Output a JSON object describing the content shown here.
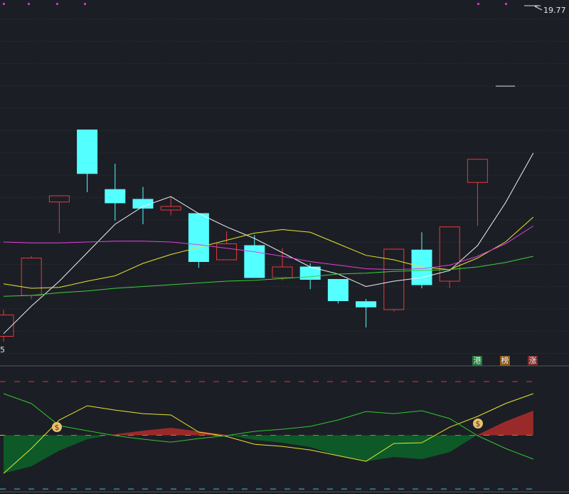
{
  "chart_data": [
    {
      "type": "candlestick",
      "ylim": [
        15.83,
        19.83
      ],
      "categories": [
        null,
        null,
        null,
        null,
        null,
        null,
        null,
        null,
        null,
        null,
        null,
        null,
        null,
        null,
        null,
        null,
        null,
        null,
        null,
        null
      ],
      "open": [
        16.05,
        16.51,
        17.56,
        18.37,
        17.7,
        17.59,
        17.47,
        17.43,
        16.91,
        17.07,
        16.71,
        16.83,
        16.69,
        16.44,
        16.35,
        17.02,
        16.67,
        17.78,
        null,
        null
      ],
      "high": [
        16.35,
        16.95,
        17.63,
        18.37,
        17.99,
        17.73,
        17.61,
        17.43,
        17.23,
        17.19,
        17.04,
        16.87,
        16.69,
        16.47,
        17.03,
        17.22,
        17.28,
        18.04,
        null,
        null
      ],
      "low": [
        15.99,
        16.47,
        17.21,
        17.67,
        17.35,
        17.31,
        17.41,
        16.82,
        16.91,
        16.71,
        16.68,
        16.58,
        16.42,
        16.15,
        16.33,
        16.59,
        16.59,
        17.29,
        null,
        null
      ],
      "close": [
        16.29,
        16.93,
        17.63,
        17.88,
        17.55,
        17.49,
        17.51,
        16.89,
        17.09,
        16.71,
        16.83,
        16.69,
        16.45,
        16.38,
        17.03,
        16.63,
        17.28,
        18.04,
        null,
        null
      ],
      "up_color": "#e8383b",
      "down_color": "#54ffff",
      "series": [
        {
          "color": "#f0f0f0",
          "values": [
            16.08,
            16.39,
            16.67,
            16.99,
            17.31,
            17.51,
            17.62,
            17.43,
            17.28,
            17.15,
            16.99,
            16.83,
            16.75,
            16.61,
            16.67,
            16.71,
            16.79,
            17.07,
            17.55,
            18.11
          ]
        },
        {
          "color": "#e6e62e",
          "values": [
            16.64,
            16.59,
            16.6,
            16.67,
            16.73,
            16.87,
            16.97,
            17.05,
            17.13,
            17.21,
            17.25,
            17.22,
            17.09,
            16.96,
            16.91,
            16.83,
            16.8,
            16.93,
            17.11,
            17.39
          ]
        },
        {
          "color": "#e040e0",
          "values": [
            17.11,
            17.1,
            17.1,
            17.11,
            17.12,
            17.12,
            17.11,
            17.08,
            17.04,
            17.0,
            16.95,
            16.89,
            16.85,
            16.81,
            16.8,
            16.81,
            16.85,
            16.95,
            17.09,
            17.29
          ]
        },
        {
          "color": "#3ad13a",
          "values": [
            16.5,
            16.51,
            16.54,
            16.56,
            16.59,
            16.61,
            16.63,
            16.65,
            16.67,
            16.68,
            16.7,
            16.72,
            16.75,
            16.76,
            16.78,
            16.79,
            16.8,
            16.83,
            16.88,
            16.95
          ]
        }
      ],
      "high_label": "19.77",
      "low_label": "5",
      "badges": [
        {
          "text": "港",
          "color": "#1f7a3a"
        },
        {
          "text": "榜",
          "color": "#8a5a1a"
        },
        {
          "text": "涨",
          "color": "#7a2a2a"
        }
      ]
    },
    {
      "type": "line",
      "ylim": [
        -2,
        114
      ],
      "hlines": [
        {
          "value": 100,
          "color": "#c84040"
        },
        {
          "value": 50,
          "color": "#e0d020"
        },
        {
          "value": 0,
          "color": "#40c0d0"
        }
      ],
      "area": {
        "baseline": 50,
        "up_color": "#9a2a2a",
        "down_color": "#0d5a28",
        "values": [
          14.6,
          21.2,
          35.8,
          46.4,
          51.0,
          54.3,
          57.0,
          53.7,
          50.4,
          45.7,
          43.1,
          39.1,
          31.1,
          25.8,
          29.8,
          27.8,
          34.4,
          50.4,
          62.9,
          72.9
        ]
      },
      "series": [
        {
          "color": "#e6e62e",
          "values": [
            14.6,
            37.8,
            64.3,
            77.5,
            73.5,
            70.2,
            68.9,
            53.0,
            49.0,
            41.7,
            39.7,
            36.4,
            31.1,
            25.8,
            42.4,
            43.1,
            57.6,
            67.6,
            79.5,
            88.8
          ]
        },
        {
          "color": "#2ec82e",
          "values": [
            88.8,
            79.5,
            59.0,
            54.3,
            49.7,
            46.4,
            43.7,
            47.0,
            49.7,
            53.7,
            55.7,
            58.3,
            64.3,
            72.2,
            70.2,
            72.9,
            65.6,
            49.7,
            37.8,
            27.8
          ]
        }
      ]
    }
  ]
}
